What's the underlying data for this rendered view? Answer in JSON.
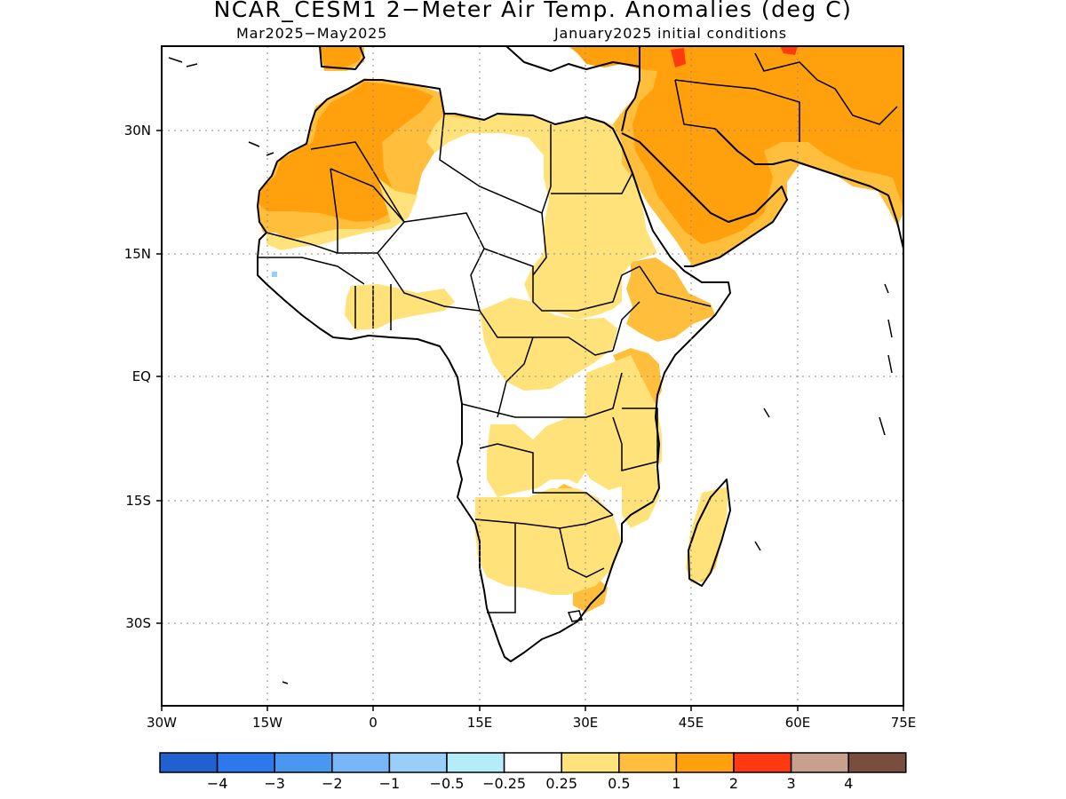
{
  "title": "NCAR_CESM1 2−Meter Air Temp. Anomalies (deg C)",
  "period": "Mar2025−May2025",
  "init": "January2025 initial conditions",
  "lat_ticks": [
    "30N",
    "15N",
    "EQ",
    "15S",
    "30S"
  ],
  "lon_ticks": [
    "30W",
    "15W",
    "0",
    "15E",
    "30E",
    "45E",
    "60E",
    "75E"
  ],
  "legend": {
    "colors": [
      "#1f62cf",
      "#2c78ec",
      "#4a97f2",
      "#78b6f7",
      "#98cff9",
      "#b4ecf9",
      "#ffffff",
      "#ffe27a",
      "#ffbe3c",
      "#ffa00c",
      "#ff3a0f",
      "#c8a08e",
      "#7a4e3f"
    ],
    "labels": [
      "−4",
      "−3",
      "−2",
      "−1",
      "−0.5",
      "−0.25",
      "0.25",
      "0.5",
      "1",
      "2",
      "3",
      "4"
    ]
  }
}
